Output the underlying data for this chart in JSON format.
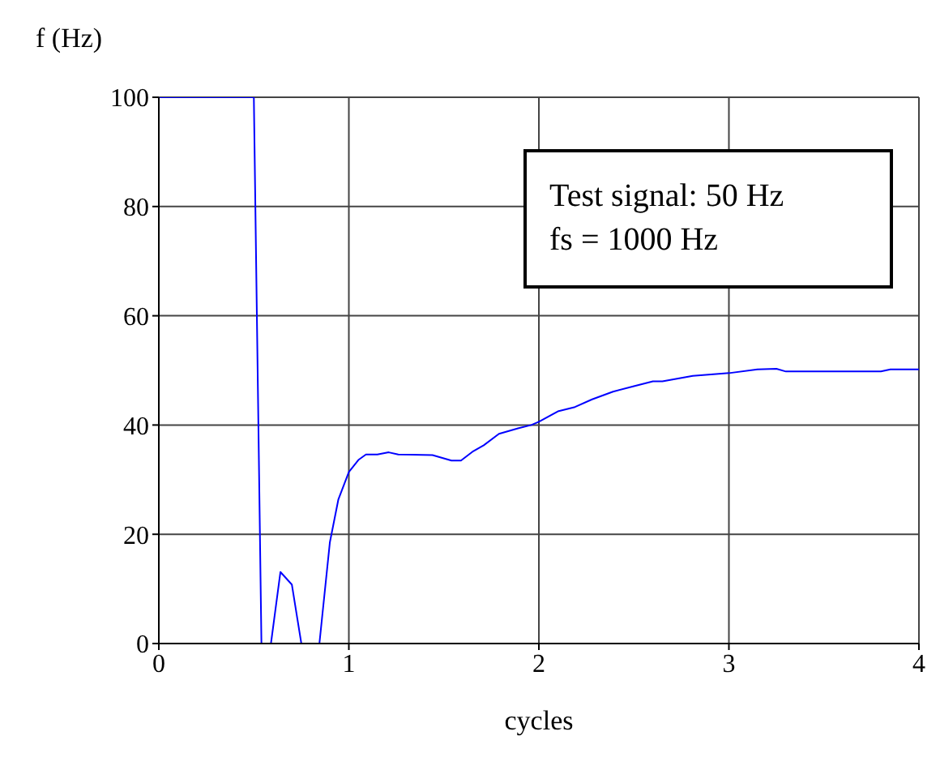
{
  "chart_data": {
    "type": "line",
    "xlabel": "cycles",
    "ylabel": "f (Hz)",
    "annotations": [
      "Test signal: 50 Hz",
      "fs = 1000 Hz"
    ],
    "xlim": [
      0,
      4
    ],
    "xticks": [
      0,
      1,
      2,
      3,
      4
    ],
    "ylim": [
      0,
      100
    ],
    "yticks": [
      0,
      20,
      40,
      60,
      80,
      100
    ],
    "grid": true,
    "legend": false,
    "marker": "none",
    "line_style": "solid",
    "series": [
      {
        "color": "#0000ff",
        "x": [
          0,
          0.5,
          0.54,
          0.59,
          0.64,
          0.7,
          0.75,
          0.845,
          0.9,
          0.945,
          1.0,
          1.05,
          1.09,
          1.15,
          1.21,
          1.26,
          1.44,
          1.54,
          1.59,
          1.65,
          1.71,
          1.79,
          1.89,
          1.96,
          2.0,
          2.1,
          2.19,
          2.28,
          2.39,
          2.5,
          2.6,
          2.65,
          2.81,
          3.0,
          3.15,
          3.25,
          3.3,
          3.8,
          3.85,
          4.0
        ],
        "values": [
          100,
          100,
          0,
          0,
          13.1,
          10.8,
          0,
          0,
          18.5,
          26.4,
          31.4,
          33.6,
          34.6,
          34.6,
          35,
          34.6,
          34.5,
          33.5,
          33.5,
          35.1,
          36.3,
          38.4,
          39.4,
          40,
          40.6,
          42.5,
          43.3,
          44.7,
          46.1,
          47.1,
          48,
          48,
          49,
          49.5,
          50.2,
          50.3,
          49.8,
          49.8,
          50.2,
          50.2
        ]
      }
    ]
  }
}
